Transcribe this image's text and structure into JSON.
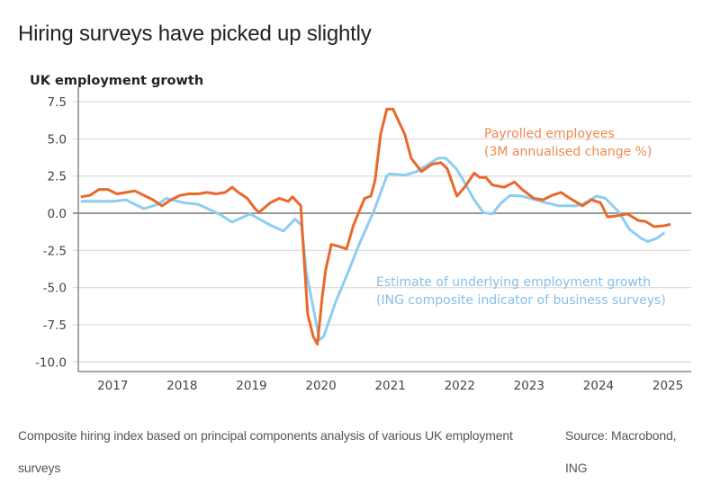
{
  "header": {
    "title": "Hiring surveys have picked up slightly"
  },
  "footer": {
    "note": "Composite hiring index based on principal components analysis of various UK employment surveys",
    "source": "Source: Macrobond, ING"
  },
  "chart_data": {
    "type": "line",
    "title": "UK employment growth",
    "xlabel": "",
    "ylabel": "",
    "ylim": [
      -10,
      7.5
    ],
    "y_ticks": [
      "7.5",
      "5.0",
      "2.5",
      "0.0",
      "-2.5",
      "-5.0",
      "-7.5",
      "-10.0"
    ],
    "y_tick_values": [
      7.5,
      5,
      2.5,
      0,
      -2.5,
      -5,
      -7.5,
      -10
    ],
    "x_ticks": [
      "2017",
      "2018",
      "2019",
      "2020",
      "2021",
      "2022",
      "2023",
      "2024",
      "2025"
    ],
    "grid": true,
    "legend": "inline annotations",
    "series": [
      {
        "name": "Payrolled employees (3M annualised change %)",
        "label_lines": [
          "Payrolled employees",
          "(3M annualised change %)"
        ],
        "color": "#E8692B",
        "label_color": "#EE8A4E",
        "x": [
          2017.04,
          2017.17,
          2017.3,
          2017.43,
          2017.56,
          2017.69,
          2017.82,
          2017.95,
          2018.08,
          2018.21,
          2018.34,
          2018.47,
          2018.6,
          2018.73,
          2018.86,
          2018.99,
          2019.12,
          2019.22,
          2019.31,
          2019.44,
          2019.55,
          2019.61,
          2019.77,
          2019.9,
          2020.03,
          2020.09,
          2020.21,
          2020.26,
          2020.31,
          2020.39,
          2020.45,
          2020.52,
          2020.57,
          2020.65,
          2020.74,
          2020.87,
          2020.97,
          2021.13,
          2021.22,
          2021.28,
          2021.36,
          2021.45,
          2021.54,
          2021.71,
          2021.8,
          2021.95,
          2022.1,
          2022.23,
          2022.32,
          2022.46,
          2022.58,
          2022.71,
          2022.79,
          2022.88,
          2022.97,
          2023.14,
          2023.29,
          2023.4,
          2023.57,
          2023.7,
          2023.83,
          2023.96,
          2024.09,
          2024.27,
          2024.4,
          2024.53,
          2024.63,
          2024.73,
          2024.92,
          2025.08,
          2025.18,
          2025.3,
          2025.43,
          2025.54
        ],
        "values": [
          1.1,
          1.2,
          1.6,
          1.6,
          1.3,
          1.4,
          1.5,
          1.2,
          0.9,
          0.5,
          0.9,
          1.2,
          1.3,
          1.3,
          1.4,
          1.3,
          1.4,
          1.75,
          1.4,
          1.0,
          0.3,
          0.06,
          0.7,
          1.0,
          0.8,
          1.1,
          0.5,
          -3.2,
          -6.8,
          -8.3,
          -8.8,
          -5.6,
          -3.8,
          -2.1,
          -2.2,
          -2.4,
          -0.8,
          1.0,
          1.15,
          2.2,
          5.3,
          7.0,
          7.0,
          5.3,
          3.7,
          2.8,
          3.3,
          3.4,
          3.0,
          1.15,
          1.8,
          2.7,
          2.4,
          2.4,
          1.9,
          1.75,
          2.1,
          1.6,
          1.0,
          0.9,
          1.2,
          1.4,
          1.0,
          0.5,
          0.9,
          0.7,
          -0.25,
          -0.2,
          -0.05,
          -0.5,
          -0.55,
          -0.9,
          -0.85,
          -0.75
        ]
      },
      {
        "name": "Estimate of underlying employment growth (ING composite indicator of business surveys)",
        "label_lines": [
          "Estimate of underlying employment growth",
          "(ING composite indicator of business surveys)"
        ],
        "color": "#8ECDF2",
        "label_color": "#86BFEA",
        "x": [
          2017.04,
          2017.3,
          2017.5,
          2017.69,
          2017.82,
          2017.95,
          2018.15,
          2018.27,
          2018.4,
          2018.53,
          2018.73,
          2018.92,
          2019.05,
          2019.22,
          2019.48,
          2019.77,
          2019.96,
          2020.13,
          2020.22,
          2020.29,
          2020.48,
          2020.54,
          2020.71,
          2020.89,
          2021.06,
          2021.26,
          2021.45,
          2021.49,
          2021.71,
          2021.88,
          2022.19,
          2022.3,
          2022.45,
          2022.53,
          2022.71,
          2022.84,
          2022.97,
          2023.1,
          2023.23,
          2023.4,
          2023.75,
          2023.92,
          2024.18,
          2024.27,
          2024.47,
          2024.6,
          2024.79,
          2024.95,
          2025.12,
          2025.21,
          2025.34,
          2025.45
        ],
        "values": [
          0.8,
          0.8,
          0.8,
          0.9,
          0.6,
          0.3,
          0.6,
          1.0,
          0.85,
          0.7,
          0.6,
          0.2,
          -0.1,
          -0.6,
          -0.05,
          -0.8,
          -1.2,
          -0.4,
          -0.8,
          -4.0,
          -8.5,
          -8.3,
          -6.0,
          -4.0,
          -2.0,
          0.1,
          2.5,
          2.65,
          2.55,
          2.8,
          3.7,
          3.7,
          3.0,
          2.4,
          0.9,
          0.05,
          -0.05,
          0.7,
          1.2,
          1.15,
          0.7,
          0.5,
          0.5,
          0.6,
          1.15,
          1.0,
          0.1,
          -1.1,
          -1.7,
          -1.9,
          -1.7,
          -1.3
        ]
      }
    ]
  }
}
